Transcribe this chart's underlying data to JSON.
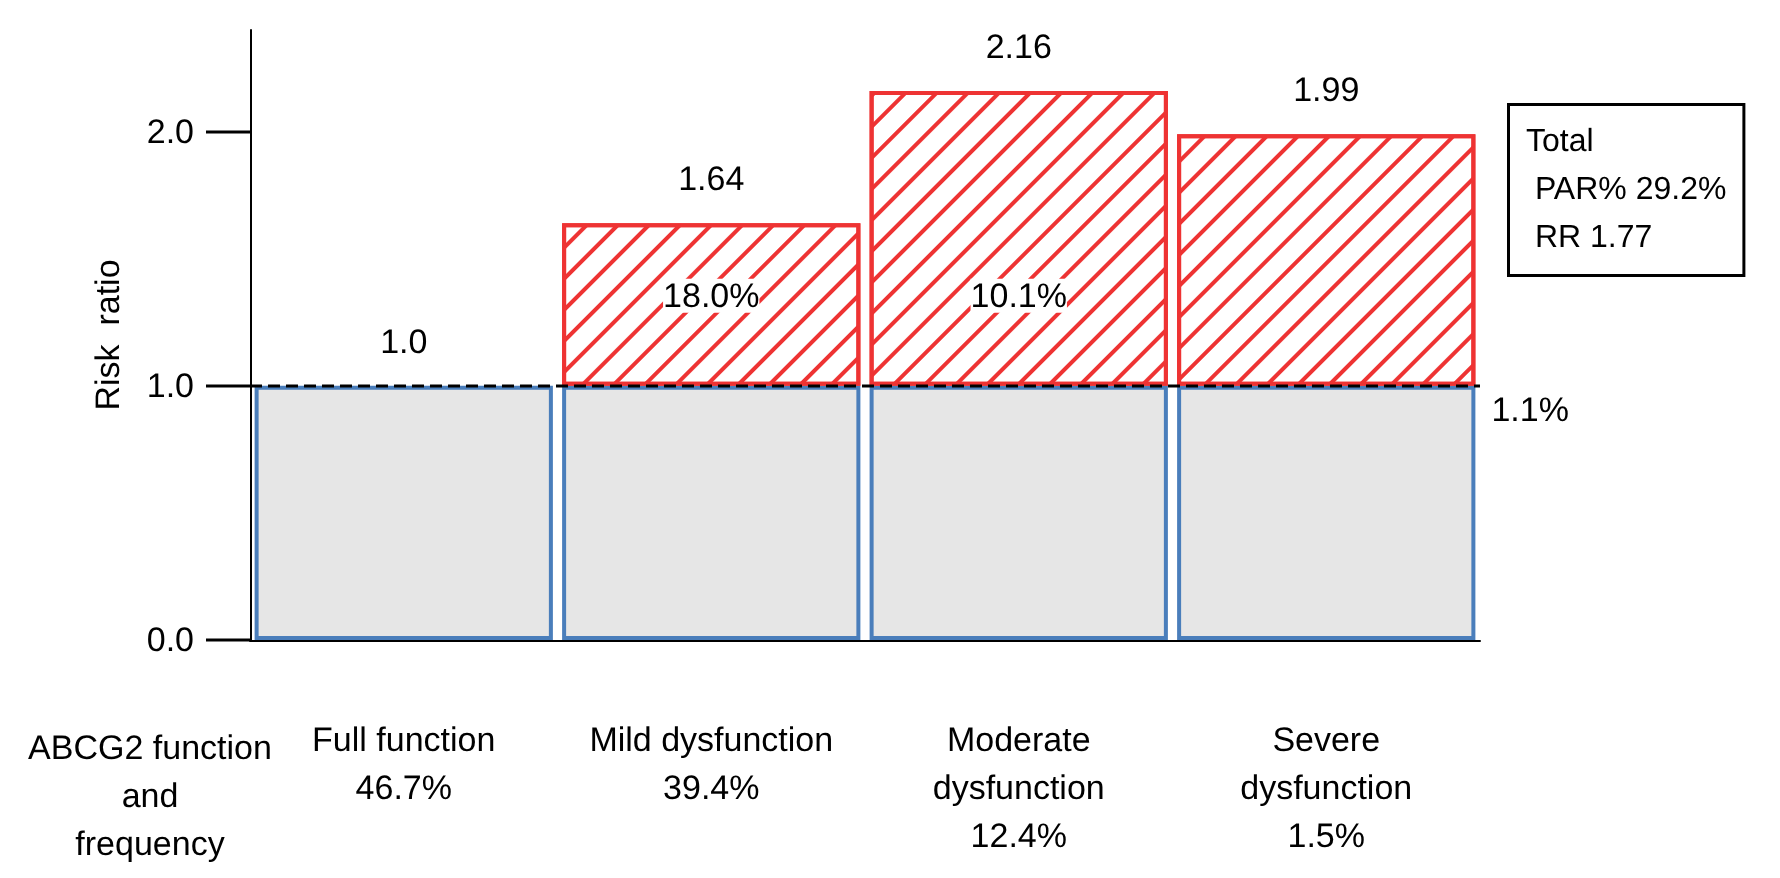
{
  "chart_data": {
    "type": "bar",
    "stacked": true,
    "ylabel": "Risk  ratio",
    "xlabel": "ABCG2 function\nand\nfrequency",
    "categories": [
      "Full function\n46.7%",
      "Mild dysfunction\n39.4%",
      "Moderate\ndysfunction\n12.4%",
      "Severe\ndysfunction\n1.5%"
    ],
    "series": [
      {
        "color": "#e6e6e6",
        "values": [
          1.0,
          1.0,
          1.0,
          1.0
        ]
      },
      {
        "color": "#ee3333",
        "values": [
          null,
          0.64,
          1.16,
          0.99
        ]
      }
    ],
    "totals": [
      "1.0",
      "1.64",
      "2.16",
      "1.99"
    ],
    "ylim": [
      0,
      2.4
    ],
    "yticks": [
      {
        "value": 0,
        "label": "0.0"
      },
      {
        "value": 1,
        "label": "1.0"
      },
      {
        "value": 2,
        "label": "2.0"
      }
    ],
    "ref_lines": [
      {
        "axis": "y",
        "value": 1,
        "line_style": "dashed",
        "color": "#000000"
      }
    ],
    "annotations": [
      "18.0%",
      "10.1%",
      "1.1%",
      "Total\n PAR% 29.2%\n RR 1.77"
    ],
    "grid": false
  }
}
